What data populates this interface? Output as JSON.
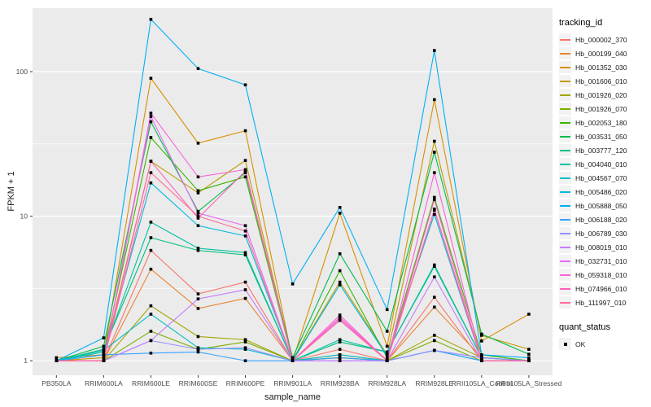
{
  "figure": {
    "background": "#FFFFFF",
    "panel_background": "#EBEBEB",
    "grid_color": "#FFFFFF",
    "tick_label_color": "#4D4D4D",
    "axis_title_color": "#1a1a1a"
  },
  "chart_data": {
    "type": "line",
    "title": "",
    "xlabel": "sample_name",
    "ylabel": "FPKM + 1",
    "y_scale": "log10",
    "y_ticks": [
      1,
      10,
      100
    ],
    "y_tick_labels": [
      "1",
      "10",
      "100"
    ],
    "y_minor_ticks": [
      3.1623,
      31.623
    ],
    "ylim": [
      0.79,
      275
    ],
    "grid": true,
    "legend_position": "right",
    "marker": {
      "shape": "square",
      "color": "#000000"
    },
    "categories": [
      "PB350LA",
      "RRIM600LA",
      "RRIM600LE",
      "RRIM600SE",
      "RRIM600PE",
      "RRIM901LA",
      "RRIM928BA",
      "RRIM928LA",
      "RRIM928LE",
      "RRII105LA_Control",
      "RRII105LA_Stressed"
    ],
    "series": [
      {
        "name": "Hb_000002_370",
        "color": "#F8766D",
        "values": [
          1.0,
          1.0,
          5.8,
          2.9,
          3.5,
          1.0,
          1.2,
          1.0,
          2.75,
          1.0,
          1.0
        ]
      },
      {
        "name": "Hb_000199_040",
        "color": "#EA8531",
        "values": [
          1.0,
          1.0,
          4.3,
          2.3,
          2.7,
          1.0,
          1.1,
          1.0,
          2.35,
          1.05,
          1.0
        ]
      },
      {
        "name": "Hb_001352_030",
        "color": "#D89000",
        "values": [
          1.05,
          1.1,
          90,
          32,
          39,
          1.0,
          10.5,
          1.26,
          64,
          1.37,
          2.1
        ]
      },
      {
        "name": "Hb_001606_010",
        "color": "#C09B00",
        "values": [
          1.0,
          1.05,
          24,
          14.5,
          24.3,
          1.0,
          3.5,
          1.1,
          33,
          1.5,
          1.2
        ]
      },
      {
        "name": "Hb_001926_020",
        "color": "#A3A500",
        "values": [
          1.0,
          1.0,
          2.4,
          1.47,
          1.4,
          1.0,
          1.05,
          1.0,
          1.5,
          1.05,
          1.0
        ]
      },
      {
        "name": "Hb_001926_070",
        "color": "#7CAE00",
        "values": [
          1.0,
          1.0,
          1.6,
          1.2,
          1.35,
          1.0,
          1.05,
          1.0,
          1.38,
          1.0,
          1.0
        ]
      },
      {
        "name": "Hb_002053_180",
        "color": "#39B600",
        "values": [
          1.0,
          1.1,
          35,
          15,
          18.7,
          1.0,
          4.2,
          1.05,
          13.5,
          1.1,
          1.0
        ]
      },
      {
        "name": "Hb_003531_050",
        "color": "#00BB4E",
        "values": [
          1.0,
          1.26,
          45,
          10.8,
          20,
          1.05,
          5.5,
          1.6,
          27.7,
          1.53,
          1.11
        ]
      },
      {
        "name": "Hb_003777_120",
        "color": "#00BF7D",
        "values": [
          1.0,
          1.2,
          7.1,
          5.8,
          5.4,
          1.0,
          1.35,
          1.15,
          4.5,
          1.05,
          1.0
        ]
      },
      {
        "name": "Hb_004040_010",
        "color": "#00C1A3",
        "values": [
          1.0,
          1.15,
          9.1,
          6.0,
          5.6,
          1.0,
          1.4,
          1.15,
          4.6,
          1.05,
          1.0
        ]
      },
      {
        "name": "Hb_004567_070",
        "color": "#00BFC4",
        "values": [
          1.0,
          1.18,
          2.1,
          1.23,
          1.2,
          1.0,
          1.1,
          1.0,
          1.18,
          1.0,
          1.0
        ]
      },
      {
        "name": "Hb_005486_020",
        "color": "#00BAE0",
        "values": [
          1.0,
          1.1,
          17,
          8.6,
          7.3,
          1.0,
          3.35,
          1.08,
          10.3,
          1.0,
          1.0
        ]
      },
      {
        "name": "Hb_005888_050",
        "color": "#00B0F6",
        "values": [
          1.0,
          1.44,
          230,
          105,
          81,
          3.4,
          11.5,
          2.26,
          140,
          1.1,
          1.05
        ]
      },
      {
        "name": "Hb_006188_020",
        "color": "#35A2FF",
        "values": [
          1.0,
          1.1,
          1.13,
          1.15,
          1.0,
          1.0,
          1.05,
          1.0,
          1.18,
          1.0,
          1.0
        ]
      },
      {
        "name": "Hb_006789_030",
        "color": "#9590FF",
        "values": [
          1.0,
          1.0,
          1.38,
          1.2,
          1.23,
          1.0,
          1.0,
          1.0,
          1.18,
          1.05,
          1.0
        ]
      },
      {
        "name": "Hb_008019_010",
        "color": "#C77CFF",
        "values": [
          1.0,
          1.0,
          1.38,
          2.68,
          3.1,
          1.0,
          1.0,
          1.0,
          3.8,
          1.0,
          1.0
        ]
      },
      {
        "name": "Hb_032731_010",
        "color": "#E76BF3",
        "values": [
          1.0,
          1.0,
          49,
          10.5,
          8.6,
          1.0,
          1.95,
          1.0,
          11.2,
          1.0,
          1.0
        ]
      },
      {
        "name": "Hb_059318_010",
        "color": "#FA62DB",
        "values": [
          1.0,
          1.0,
          51.6,
          18.7,
          21,
          1.0,
          2.07,
          1.0,
          20,
          1.0,
          1.0
        ]
      },
      {
        "name": "Hb_074966_010",
        "color": "#FF62BC",
        "values": [
          1.0,
          1.0,
          24,
          9.7,
          20.5,
          1.0,
          2.0,
          1.0,
          13.0,
          1.0,
          1.0
        ]
      },
      {
        "name": "Hb_111997_010",
        "color": "#FF6A98",
        "values": [
          1.0,
          1.0,
          20,
          10.0,
          7.9,
          1.0,
          1.9,
          1.0,
          11.0,
          1.0,
          1.0
        ]
      }
    ]
  },
  "legends": {
    "tracking": {
      "title": "tracking_id"
    },
    "quant": {
      "title": "quant_status",
      "items": [
        {
          "label": "OK"
        }
      ]
    }
  }
}
